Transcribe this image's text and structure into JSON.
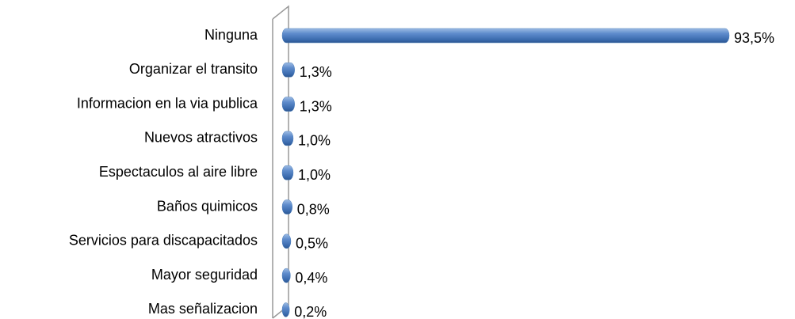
{
  "chart_data": {
    "type": "bar",
    "orientation": "horizontal",
    "categories": [
      "Ninguna",
      "Organizar el transito",
      "Informacion en la via publica",
      "Nuevos atractivos",
      "Espectaculos al aire libre",
      "Baños quimicos",
      "Servicios para discapacitados",
      "Mayor seguridad",
      "Mas señalizacion"
    ],
    "values": [
      93.5,
      1.3,
      1.3,
      1.0,
      1.0,
      0.8,
      0.5,
      0.4,
      0.2
    ],
    "value_labels": [
      "93,5%",
      "1,3%",
      "1,3%",
      "1,0%",
      "1,0%",
      "0,8%",
      "0,5%",
      "0,4%",
      "0,2%"
    ],
    "color": "#4f81bd"
  }
}
